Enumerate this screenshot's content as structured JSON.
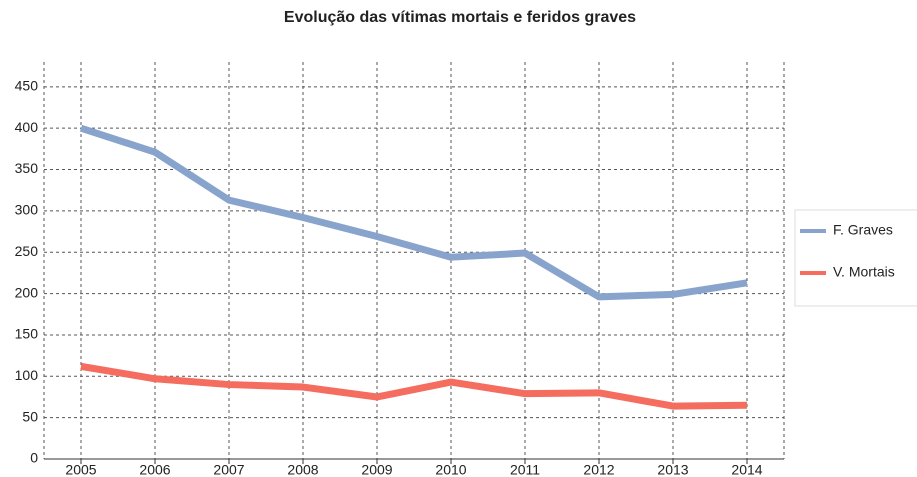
{
  "chart_data": {
    "type": "line",
    "title": "Evolução das vítimas mortais e feridos graves",
    "categories": [
      "2005",
      "2006",
      "2007",
      "2008",
      "2009",
      "2010",
      "2011",
      "2012",
      "2013",
      "2014"
    ],
    "series": [
      {
        "name": "F. Graves",
        "color": "#88a4cc",
        "values": [
          400,
          371,
          313,
          292,
          269,
          244,
          249,
          196,
          199,
          213
        ]
      },
      {
        "name": "V. Mortais",
        "color": "#f46d5e",
        "values": [
          112,
          97,
          90,
          87,
          75,
          93,
          79,
          80,
          64,
          65
        ]
      }
    ],
    "ylim": [
      0,
      480
    ],
    "yticks": [
      0,
      50,
      100,
      150,
      200,
      250,
      300,
      350,
      400,
      450
    ],
    "grid": true,
    "legend": "right"
  }
}
